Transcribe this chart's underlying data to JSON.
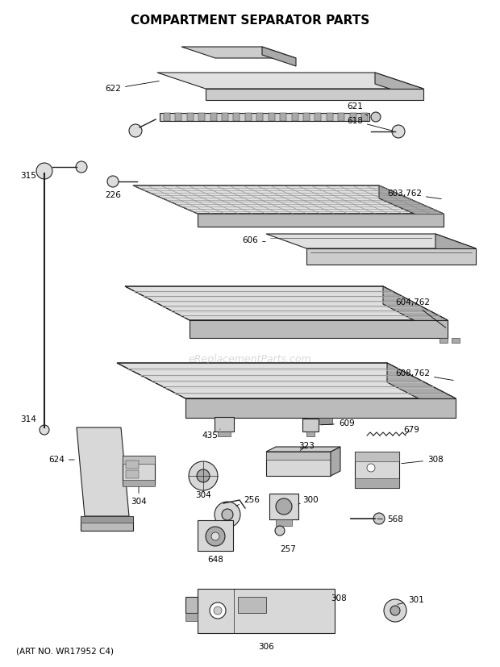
{
  "title": "COMPARTMENT SEPARATOR PARTS",
  "art_no": "(ART NO. WR17952 C4)",
  "watermark": "eReplacementParts.com",
  "background": "#ffffff",
  "figsize": [
    6.2,
    8.27
  ],
  "dpi": 100
}
